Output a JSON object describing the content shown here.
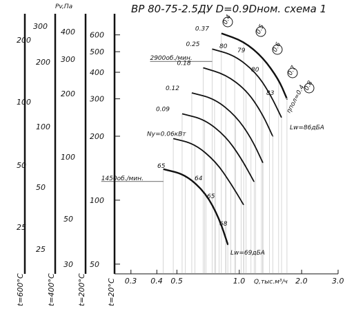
{
  "chart_data": {
    "type": "line",
    "title": "ВР 80-75-2.5ДУ D=0.9Dном. схема 1",
    "ylabel": "Pv,Па",
    "xlabel": "Q,тыс.м³/ч",
    "x_scale": "log",
    "y_scale": "log",
    "xlim": [
      0.25,
      3.0
    ],
    "ylim": [
      45,
      700
    ],
    "x_ticks": [
      {
        "v": 0.3,
        "label": "0.3"
      },
      {
        "v": 0.4,
        "label": "0.4"
      },
      {
        "v": 0.5,
        "label": "0.5"
      },
      {
        "v": 1.0,
        "label": "1.0"
      },
      {
        "v": 2.0,
        "label": "2.0"
      },
      {
        "v": 3.0,
        "label": "3.0"
      }
    ],
    "y_ticks": [
      {
        "v": 50,
        "label": "50"
      },
      {
        "v": 100,
        "label": "100"
      },
      {
        "v": 200,
        "label": "200"
      },
      {
        "v": 300,
        "label": "300"
      },
      {
        "v": 400,
        "label": "400"
      },
      {
        "v": 500,
        "label": "500"
      },
      {
        "v": 600,
        "label": "600"
      }
    ],
    "side_scales": [
      {
        "label": "t=600°C",
        "ticks": [
          {
            "v": 200,
            "label": "200"
          },
          {
            "v": 100,
            "label": "100"
          },
          {
            "v": 50,
            "label": "50"
          },
          {
            "v": 25,
            "label": "25"
          }
        ]
      },
      {
        "label": "t=400°C",
        "ticks": [
          {
            "v": 300,
            "label": "300"
          },
          {
            "v": 200,
            "label": "200"
          },
          {
            "v": 100,
            "label": "100"
          },
          {
            "v": 50,
            "label": "50"
          },
          {
            "v": 25,
            "label": "25"
          }
        ]
      },
      {
        "label": "t=200°C",
        "ticks": [
          {
            "v": 400,
            "label": "400"
          },
          {
            "v": 300,
            "label": "300"
          },
          {
            "v": 200,
            "label": "200"
          },
          {
            "v": 100,
            "label": "100"
          },
          {
            "v": 50,
            "label": "50"
          },
          {
            "v": 30,
            "label": "30"
          }
        ]
      }
    ],
    "series": [
      {
        "speed_label": "",
        "power_label": "0.37",
        "points": [
          [
            0.82,
            610
          ],
          [
            1.05,
            560
          ],
          [
            1.3,
            470
          ],
          [
            1.55,
            370
          ],
          [
            1.7,
            300
          ]
        ]
      },
      {
        "speed_label": "2900об./мин.",
        "power_label": "0.25",
        "points": [
          [
            0.74,
            515
          ],
          [
            0.95,
            480
          ],
          [
            1.2,
            400
          ],
          [
            1.4,
            320
          ],
          [
            1.6,
            245
          ]
        ]
      },
      {
        "speed_label": "",
        "power_label": "0.18",
        "points": [
          [
            0.67,
            420
          ],
          [
            0.86,
            390
          ],
          [
            1.08,
            330
          ],
          [
            1.28,
            260
          ],
          [
            1.45,
            200
          ]
        ]
      },
      {
        "speed_label": "",
        "power_label": "0.12",
        "points": [
          [
            0.59,
            320
          ],
          [
            0.76,
            300
          ],
          [
            0.96,
            250
          ],
          [
            1.14,
            197
          ],
          [
            1.3,
            150
          ]
        ]
      },
      {
        "speed_label": "",
        "power_label": "0.09",
        "points": [
          [
            0.53,
            255
          ],
          [
            0.68,
            240
          ],
          [
            0.86,
            200
          ],
          [
            1.02,
            158
          ],
          [
            1.18,
            122
          ]
        ]
      },
      {
        "speed_label": "",
        "power_label": "Ny=0.06кВт",
        "points": [
          [
            0.48,
            195
          ],
          [
            0.61,
            184
          ],
          [
            0.77,
            152
          ],
          [
            0.91,
            120
          ],
          [
            1.05,
            95
          ]
        ]
      },
      {
        "speed_label": "1450об./мин.",
        "power_label": "",
        "points": [
          [
            0.43,
            140
          ],
          [
            0.55,
            132
          ],
          [
            0.69,
            108
          ],
          [
            0.8,
            82
          ],
          [
            0.88,
            62
          ]
        ]
      }
    ],
    "annotations": [
      {
        "text": "Lw=86дБА"
      },
      {
        "text": "Lw=69дБА"
      },
      {
        "text": "ηпол=0.4"
      },
      {
        "text": "0.4"
      },
      {
        "text": "0.5"
      },
      {
        "text": "0.6"
      },
      {
        "text": "0.7"
      },
      {
        "text": "0.8"
      },
      {
        "text": "80"
      },
      {
        "text": "79"
      },
      {
        "text": "80"
      },
      {
        "text": "83"
      },
      {
        "text": "65"
      },
      {
        "text": "64"
      },
      {
        "text": "65"
      },
      {
        "text": "68"
      }
    ],
    "grid": false
  }
}
